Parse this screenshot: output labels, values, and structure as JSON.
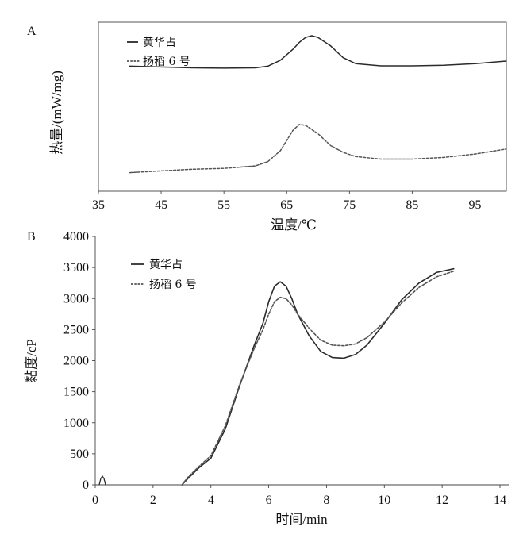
{
  "chart_data": [
    {
      "panel_label": "A",
      "type": "line",
      "xlabel": "温度/℃",
      "ylabel": "热量/(mW/mg)",
      "xlim": [
        35,
        100
      ],
      "xticks": [
        "35",
        "45",
        "55",
        "65",
        "75",
        "85",
        "95"
      ],
      "y_ticks_shown": false,
      "grid": false,
      "legend_position": "top-left",
      "series": [
        {
          "name": "黄华占",
          "style": "solid",
          "color": "#2a2a2a",
          "x": [
            40,
            45,
            50,
            55,
            60,
            62,
            64,
            66,
            67,
            68,
            69,
            70,
            72,
            74,
            76,
            80,
            85,
            90,
            95,
            100
          ],
          "y": [
            0.74,
            0.735,
            0.73,
            0.728,
            0.73,
            0.74,
            0.775,
            0.84,
            0.88,
            0.91,
            0.92,
            0.91,
            0.86,
            0.79,
            0.755,
            0.742,
            0.742,
            0.745,
            0.755,
            0.77
          ]
        },
        {
          "name": "扬稻 6 号",
          "style": "dashed",
          "color": "#555555",
          "x": [
            40,
            45,
            50,
            55,
            60,
            62,
            64,
            65,
            66,
            67,
            68,
            70,
            72,
            74,
            76,
            80,
            85,
            90,
            95,
            100
          ],
          "y": [
            0.11,
            0.12,
            0.13,
            0.135,
            0.15,
            0.175,
            0.24,
            0.3,
            0.36,
            0.395,
            0.39,
            0.34,
            0.27,
            0.23,
            0.205,
            0.19,
            0.19,
            0.2,
            0.22,
            0.25
          ]
        }
      ]
    },
    {
      "panel_label": "B",
      "type": "line",
      "xlabel": "时间/min",
      "ylabel": "黏度/cP",
      "xlim": [
        0,
        14
      ],
      "ylim": [
        0,
        4000
      ],
      "xticks": [
        "0",
        "2",
        "4",
        "6",
        "8",
        "10",
        "12",
        "14"
      ],
      "yticks": [
        "0",
        "500",
        "1000",
        "1500",
        "2000",
        "2500",
        "3000",
        "3500",
        "4000"
      ],
      "grid": false,
      "legend_position": "top-left",
      "series": [
        {
          "name": "黄华占",
          "style": "solid",
          "color": "#2a2a2a",
          "x": [
            3.0,
            3.2,
            3.6,
            4.0,
            4.5,
            5.0,
            5.5,
            5.8,
            6.0,
            6.2,
            6.4,
            6.6,
            6.8,
            7.0,
            7.4,
            7.8,
            8.2,
            8.6,
            9.0,
            9.4,
            10.0,
            10.6,
            11.2,
            11.8,
            12.4
          ],
          "y": [
            0,
            100,
            280,
            430,
            900,
            1600,
            2250,
            2600,
            2950,
            3200,
            3270,
            3200,
            3000,
            2750,
            2400,
            2150,
            2050,
            2040,
            2100,
            2250,
            2600,
            2980,
            3250,
            3420,
            3480
          ]
        },
        {
          "name": "扬稻 6 号",
          "style": "dashed",
          "color": "#555555",
          "x": [
            3.0,
            3.2,
            3.6,
            4.0,
            4.5,
            5.0,
            5.5,
            5.8,
            6.0,
            6.2,
            6.4,
            6.6,
            6.8,
            7.0,
            7.4,
            7.8,
            8.2,
            8.6,
            9.0,
            9.4,
            10.0,
            10.6,
            11.2,
            11.8,
            12.4
          ],
          "y": [
            0,
            120,
            300,
            470,
            950,
            1620,
            2200,
            2500,
            2750,
            2950,
            3020,
            3000,
            2900,
            2750,
            2520,
            2330,
            2250,
            2240,
            2270,
            2370,
            2620,
            2930,
            3180,
            3350,
            3440
          ]
        }
      ]
    }
  ]
}
